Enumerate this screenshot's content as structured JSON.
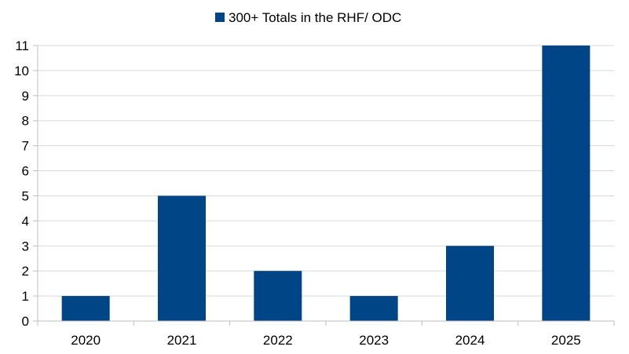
{
  "chart_data": {
    "type": "bar",
    "title": "",
    "xlabel": "",
    "ylabel": "",
    "categories": [
      "2020",
      "2021",
      "2022",
      "2023",
      "2024",
      "2025"
    ],
    "series": [
      {
        "name": "300+ Totals in the RHF/ ODC",
        "values": [
          1,
          5,
          2,
          1,
          3,
          11
        ],
        "color": "#004586"
      }
    ],
    "ylim": [
      0,
      11
    ],
    "yticks": [
      "0",
      "1",
      "2",
      "3",
      "4",
      "5",
      "6",
      "7",
      "8",
      "9",
      "10",
      "11"
    ],
    "grid": true,
    "legend": "top-center"
  }
}
